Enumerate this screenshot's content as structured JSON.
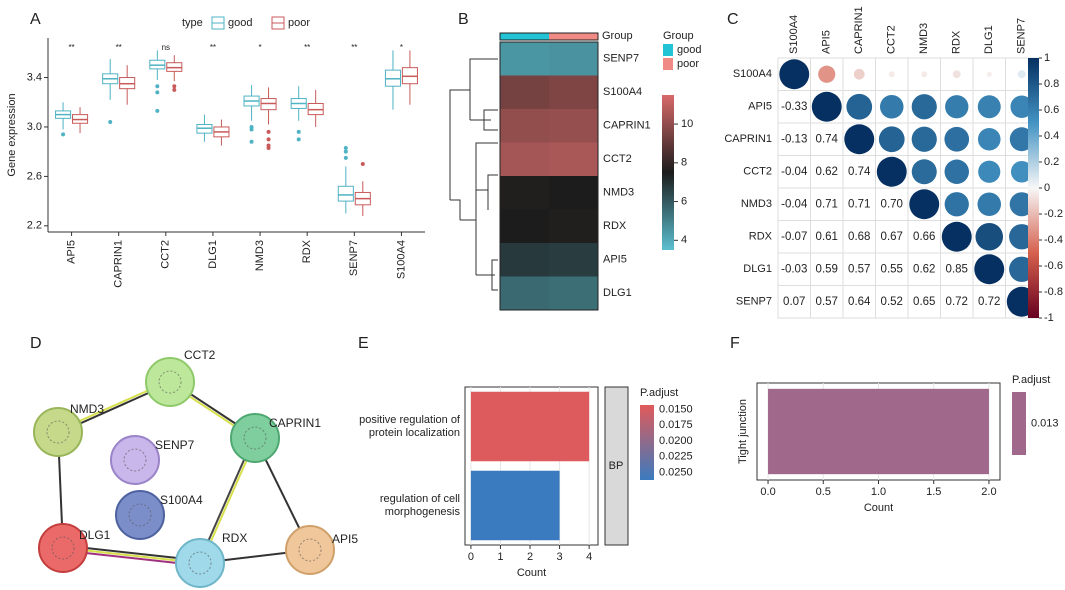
{
  "panel_labels": [
    "A",
    "B",
    "C",
    "D",
    "E",
    "F"
  ],
  "chart_data": [
    {
      "type": "box",
      "ylabel": "Gene expression",
      "legend_title": "type",
      "categories": [
        "API5",
        "CAPRIN1",
        "CCT2",
        "DLG1",
        "NMD3",
        "RDX",
        "SENP7",
        "S100A4"
      ],
      "significance": [
        "**",
        "**",
        "ns",
        "**",
        "*",
        "**",
        "**",
        "*"
      ],
      "ylim": [
        2.15,
        3.72
      ],
      "yticks": [
        2.2,
        2.6,
        {
          "value": 3,
          "label": "3.0"
        },
        3.4
      ],
      "series": [
        {
          "name": "good",
          "color": "#4fb3c4",
          "stats": [
            [
              2.98,
              3.07,
              3.1,
              3.13,
              3.2
            ],
            [
              3.22,
              3.35,
              3.39,
              3.43,
              3.55
            ],
            [
              3.38,
              3.47,
              3.5,
              3.54,
              3.62
            ],
            [
              2.88,
              2.95,
              2.99,
              3.02,
              3.1
            ],
            [
              3.05,
              3.17,
              3.21,
              3.25,
              3.34
            ],
            [
              3.05,
              3.15,
              3.19,
              3.23,
              3.33
            ],
            [
              2.3,
              2.4,
              2.45,
              2.52,
              2.68
            ],
            [
              3.14,
              3.33,
              3.39,
              3.46,
              3.62
            ]
          ],
          "outliers": [
            [
              2.94
            ],
            [
              3.04
            ],
            [
              3.33,
              3.28,
              3.13
            ],
            [],
            [
              3.0,
              2.98,
              2.88
            ],
            [
              2.96,
              2.9
            ],
            [
              2.75,
              2.8,
              2.83
            ],
            []
          ]
        },
        {
          "name": "poor",
          "color": "#c85a5a",
          "stats": [
            [
              2.95,
              3.03,
              3.06,
              3.1,
              3.16
            ],
            [
              3.18,
              3.31,
              3.35,
              3.4,
              3.5
            ],
            [
              3.37,
              3.45,
              3.48,
              3.52,
              3.58
            ],
            [
              2.85,
              2.92,
              2.96,
              3.0,
              3.06
            ],
            [
              3.02,
              3.14,
              3.19,
              3.23,
              3.32
            ],
            [
              3.0,
              3.1,
              3.14,
              3.19,
              3.3
            ],
            [
              2.28,
              2.37,
              2.42,
              2.47,
              2.56
            ],
            [
              3.18,
              3.35,
              3.41,
              3.48,
              3.62
            ]
          ],
          "outliers": [
            [],
            [],
            [
              3.33,
              3.3
            ],
            [],
            [
              2.96,
              2.9,
              2.85,
              2.83
            ],
            [],
            [
              2.7
            ],
            []
          ]
        }
      ]
    },
    {
      "type": "heatmap",
      "title": "Group",
      "legend_title": "Group",
      "rows": [
        "SENP7",
        "S100A4",
        "CAPRIN1",
        "CCT2",
        "NMD3",
        "RDX",
        "API5",
        "DLG1"
      ],
      "columns": [
        "good",
        "poor"
      ],
      "column_colors": [
        "#22c3d4",
        "#f08a84"
      ],
      "values": [
        [
          4.5,
          4.6
        ],
        [
          9.4,
          9.6
        ],
        [
          10,
          10.1
        ],
        [
          10.4,
          10.5
        ],
        [
          7.6,
          7.5
        ],
        [
          7.5,
          7.6
        ],
        [
          6.8,
          6.7
        ],
        [
          5.6,
          5.5
        ]
      ],
      "clim": [
        3.5,
        11.5
      ],
      "cticks": [
        4,
        6,
        8,
        10
      ],
      "colors": [
        "#5bbfd0",
        "#1c1c1c",
        "#d86a6a"
      ]
    },
    {
      "type": "corr",
      "labels": [
        "S100A4",
        "API5",
        "CAPRIN1",
        "CCT2",
        "NMD3",
        "RDX",
        "DLG1",
        "SENP7"
      ],
      "values": [
        [
          1
        ],
        [
          -0.33,
          1
        ],
        [
          -0.13,
          0.74,
          1
        ],
        [
          -0.04,
          0.62,
          0.74,
          1
        ],
        [
          -0.04,
          0.71,
          0.71,
          0.7,
          1
        ],
        [
          -0.07,
          0.61,
          0.68,
          0.67,
          0.66,
          1
        ],
        [
          -0.03,
          0.59,
          0.57,
          0.55,
          0.62,
          0.85,
          1
        ],
        [
          0.07,
          0.57,
          0.64,
          0.52,
          0.65,
          0.72,
          0.72,
          1
        ]
      ],
      "value_labels": [
        [],
        [
          "-0.33"
        ],
        [
          "-0.13",
          "0.74"
        ],
        [
          "-0.04",
          "0.62",
          "0.74"
        ],
        [
          "-0.04",
          "0.71",
          "0.71",
          "0.70"
        ],
        [
          "-0.07",
          "0.61",
          "0.68",
          "0.67",
          "0.66"
        ],
        [
          "-0.03",
          "0.59",
          "0.57",
          "0.55",
          "0.62",
          "0.85"
        ],
        [
          "0.07",
          "0.57",
          "0.64",
          "0.52",
          "0.65",
          "0.72",
          "0.72"
        ]
      ],
      "clim": [
        -1,
        1
      ],
      "cticks": [
        -1,
        -0.8,
        -0.6,
        -0.4,
        -0.2,
        0,
        0.2,
        0.4,
        0.6,
        0.8,
        1
      ]
    },
    {
      "type": "barh",
      "categories": [
        "positive regulation of\nprotein localization",
        "regulation of cell\nmorphogenesis"
      ],
      "values": [
        4,
        3
      ],
      "p_adjust": [
        0.0145,
        0.0262
      ],
      "xlabel": "Count",
      "xlim": [
        -0.2,
        4.3
      ],
      "xticks": [
        0,
        1,
        2,
        3,
        4
      ],
      "facet": "BP",
      "legend_title": "P.adjust",
      "clim": [
        0.0143,
        0.0262
      ],
      "colors": [
        "#e05a5a",
        "#3a7bbf"
      ],
      "cticks": [
        {
          "value": 0.015,
          "label": "0.0150"
        },
        {
          "value": 0.0175,
          "label": "0.0175"
        },
        {
          "value": 0.02,
          "label": "0.0200"
        },
        {
          "value": 0.0225,
          "label": "0.0225"
        },
        {
          "value": 0.025,
          "label": "0.0250"
        }
      ]
    },
    {
      "type": "barh",
      "categories": [
        "Tight junction"
      ],
      "values": [
        2
      ],
      "p_adjust": [
        0.013
      ],
      "xlabel": "Count",
      "xlim": [
        -0.1,
        2.1
      ],
      "xticks": [
        {
          "value": 0,
          "label": "0.0"
        },
        {
          "value": 0.5,
          "label": "0.5"
        },
        {
          "value": 1,
          "label": "1.0"
        },
        {
          "value": 1.5,
          "label": "1.5"
        },
        {
          "value": 2,
          "label": "2.0"
        }
      ],
      "legend_title": "P.adjust",
      "colors": [
        "#a0688a"
      ],
      "cticks": [
        0.013
      ]
    }
  ],
  "network": {
    "nodes": [
      "CCT2",
      "NMD3",
      "SENP7",
      "CAPRIN1",
      "S100A4",
      "DLG1",
      "RDX",
      "API5"
    ]
  }
}
